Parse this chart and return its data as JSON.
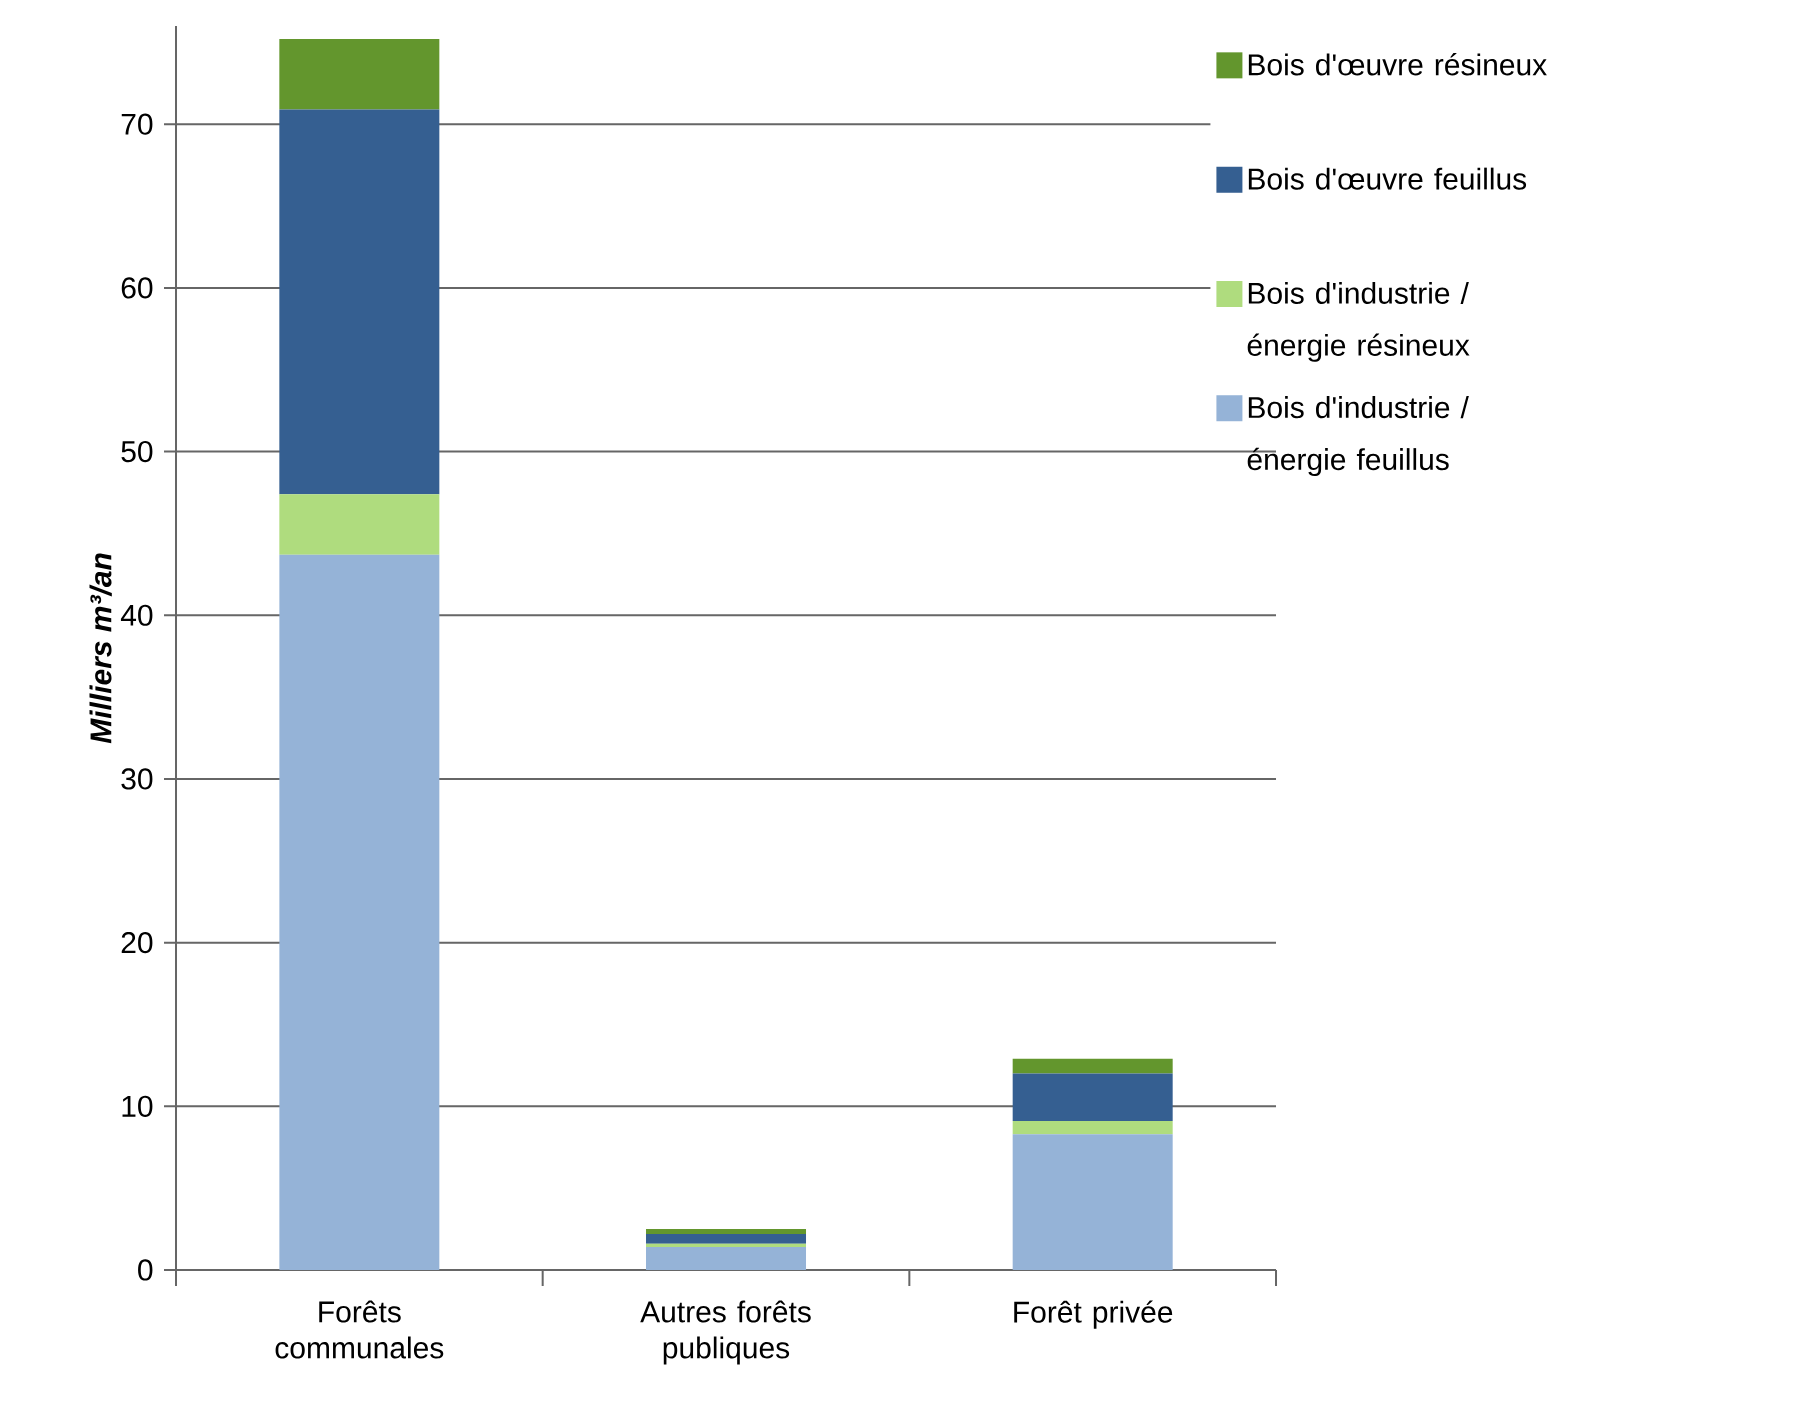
{
  "chart_data": {
    "type": "bar",
    "stacked": true,
    "ylabel": "Milliers m³/an",
    "categories": [
      "Forêts communales",
      "Autres forêts publiques",
      "Forêt privée"
    ],
    "series": [
      {
        "name": "Bois d'industrie / énergie feuillus",
        "color": "#95b3d7",
        "values": [
          43.7,
          1.4,
          8.3
        ]
      },
      {
        "name": "Bois d'industrie / énergie résineux",
        "color": "#afdc7e",
        "values": [
          3.7,
          0.2,
          0.8
        ]
      },
      {
        "name": "Bois d'œuvre feuillus",
        "color": "#355f91",
        "values": [
          23.5,
          0.6,
          2.9
        ]
      },
      {
        "name": "Bois d'œuvre résineux",
        "color": "#63962d",
        "values": [
          4.3,
          0.3,
          0.9
        ]
      }
    ],
    "ylim": [
      0,
      76
    ],
    "yticks": [
      0,
      10,
      20,
      30,
      40,
      50,
      60,
      70
    ],
    "grid": "y",
    "legend": "right"
  }
}
